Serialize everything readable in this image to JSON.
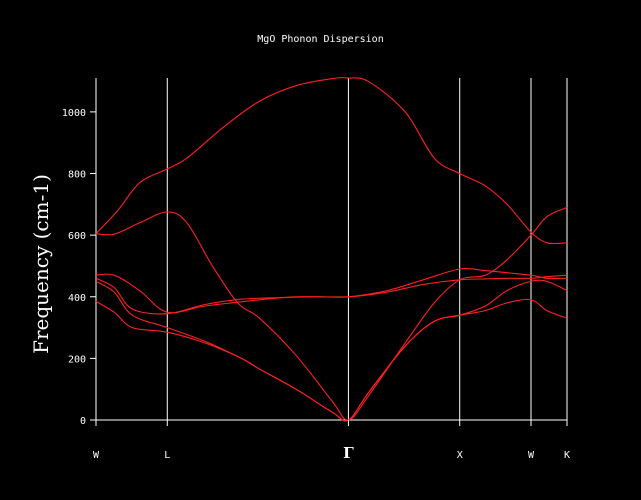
{
  "chart_data": {
    "type": "line",
    "title": "MgO Phonon Dispersion",
    "xlabel": "",
    "ylabel": "Frequency (cm-1)",
    "ylim": [
      0,
      1110
    ],
    "yticks": [
      0,
      200,
      400,
      600,
      800,
      1000
    ],
    "grid": false,
    "high_symmetry_points": [
      {
        "label": "W",
        "k": 0.0
      },
      {
        "label": "L",
        "k": 0.196
      },
      {
        "label": "Γ",
        "k": 0.694
      },
      {
        "label": "X",
        "k": 1.0
      },
      {
        "label": "W",
        "k": 1.196
      },
      {
        "label": "K",
        "k": 1.295
      }
    ],
    "colors": {
      "bands": "#ff2020",
      "axes": "#ffffff",
      "background": "#000000"
    },
    "series": [
      {
        "x": [
          0,
          0.06,
          0.12,
          0.196,
          0.25,
          0.35,
          0.45,
          0.55,
          0.65,
          0.694,
          0.75,
          0.85,
          0.93,
          1.0,
          1.07,
          1.13,
          1.196,
          1.24,
          1.295
        ],
        "values": [
          605,
          680,
          770,
          815,
          850,
          950,
          1035,
          1085,
          1108,
          1110,
          1098,
          1000,
          850,
          800,
          760,
          700,
          610,
          575,
          575
        ]
      },
      {
        "x": [
          0,
          0.05,
          0.12,
          0.196,
          0.25,
          0.32,
          0.39,
          0.45,
          0.55,
          0.65,
          0.694,
          0.75,
          0.85,
          0.93,
          1.0,
          1.07,
          1.13,
          1.196,
          1.24,
          1.295
        ],
        "values": [
          605,
          603,
          640,
          675,
          640,
          500,
          380,
          330,
          210,
          60,
          0,
          80,
          250,
          380,
          455,
          470,
          520,
          600,
          660,
          690
        ]
      },
      {
        "x": [
          0,
          0.05,
          0.12,
          0.196,
          0.3,
          0.45,
          0.55,
          0.694,
          0.8,
          0.9,
          1.0,
          1.07,
          1.13,
          1.196,
          1.24,
          1.295
        ],
        "values": [
          470,
          470,
          420,
          350,
          370,
          390,
          400,
          400,
          415,
          440,
          455,
          458,
          460,
          460,
          465,
          470
        ]
      },
      {
        "x": [
          0,
          0.05,
          0.1,
          0.196,
          0.3,
          0.4,
          0.5,
          0.6,
          0.694,
          0.8,
          0.9,
          1.0,
          1.07,
          1.13,
          1.196,
          1.24,
          1.295
        ],
        "values": [
          460,
          430,
          360,
          345,
          375,
          392,
          397,
          400,
          400,
          420,
          455,
          490,
          485,
          478,
          470,
          460,
          460
        ]
      },
      {
        "x": [
          0,
          0.05,
          0.1,
          0.196,
          0.3,
          0.4,
          0.45,
          0.55,
          0.65,
          0.694,
          0.75,
          0.85,
          0.93,
          1.0,
          1.07,
          1.13,
          1.196,
          1.24,
          1.295
        ],
        "values": [
          450,
          415,
          340,
          300,
          255,
          200,
          165,
          100,
          25,
          0,
          90,
          240,
          320,
          340,
          370,
          420,
          450,
          450,
          420
        ]
      },
      {
        "x": [
          0,
          0.05,
          0.1,
          0.196,
          0.3,
          0.4,
          0.45,
          0.55,
          0.65,
          0.694,
          0.75,
          0.85,
          0.93,
          1.0,
          1.07,
          1.13,
          1.196,
          1.24,
          1.295
        ],
        "values": [
          385,
          350,
          300,
          285,
          250,
          200,
          165,
          100,
          25,
          0,
          90,
          240,
          320,
          340,
          355,
          380,
          390,
          355,
          330
        ]
      }
    ]
  }
}
